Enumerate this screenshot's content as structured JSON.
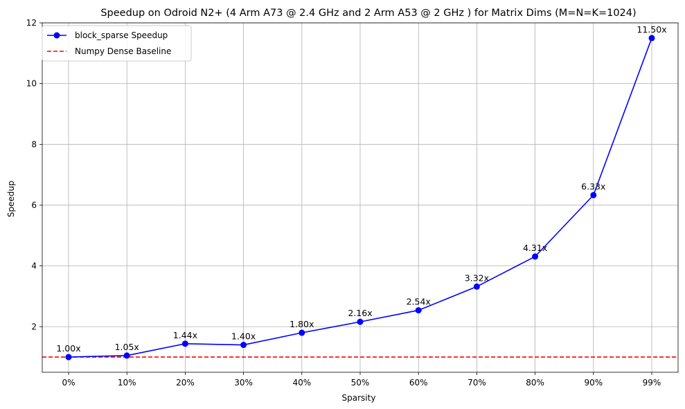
{
  "chart_data": {
    "type": "line",
    "title": "Speedup on Odroid N2+ (4 Arm A73 @ 2.4 GHz and 2 Arm A53 @ 2 GHz ) for Matrix Dims (M=N=K=1024)",
    "xlabel": "Sparsity",
    "ylabel": "Speedup",
    "categories": [
      "0%",
      "10%",
      "20%",
      "30%",
      "40%",
      "50%",
      "60%",
      "70%",
      "80%",
      "90%",
      "99%"
    ],
    "ylim": [
      0.5,
      12
    ],
    "yticks": [
      2,
      4,
      6,
      8,
      10,
      12
    ],
    "grid": true,
    "legend_position": "top-left",
    "series": [
      {
        "name": "block_sparse Speedup",
        "color": "#0000ff",
        "marker": "circle",
        "values": [
          1.0,
          1.05,
          1.44,
          1.4,
          1.8,
          2.16,
          2.54,
          3.32,
          4.31,
          6.33,
          11.5
        ],
        "labels": [
          "1.00x",
          "1.05x",
          "1.44x",
          "1.40x",
          "1.80x",
          "2.16x",
          "2.54x",
          "3.32x",
          "4.31x",
          "6.33x",
          "11.50x"
        ]
      }
    ],
    "baseline": {
      "name": "Numpy Dense Baseline",
      "value": 1.0,
      "color": "#ff0000",
      "style": "dashed"
    }
  }
}
